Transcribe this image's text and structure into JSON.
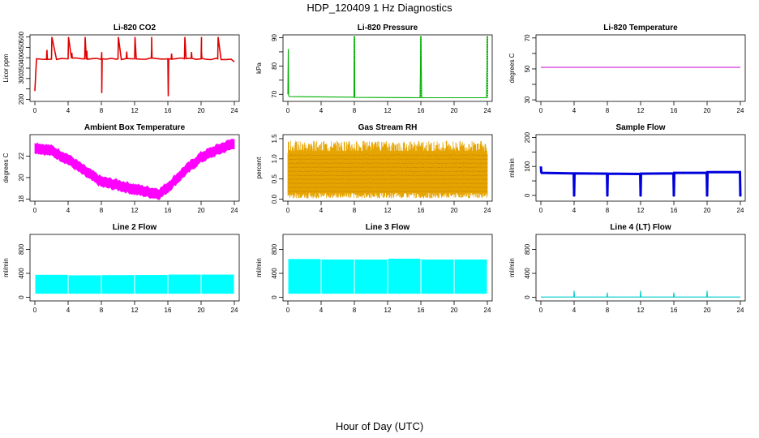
{
  "figure": {
    "title": "HDP_120409  1 Hz Diagnostics",
    "x_axis_title": "Hour of Day (UTC)"
  },
  "chart_data": [
    {
      "type": "line",
      "title": "Li-820 CO2",
      "ylabel": "Licor ppm",
      "color": "#e00000",
      "xlim": [
        0,
        24
      ],
      "xticks": [
        0,
        4,
        8,
        12,
        16,
        20,
        24
      ],
      "ylim": [
        190,
        510
      ],
      "yticks": [
        200,
        250,
        300,
        350,
        400,
        450,
        500
      ],
      "ytick_labels": [
        "200",
        "",
        "300",
        "350",
        "400",
        "450",
        "500"
      ],
      "series": [
        {
          "x": [
            0.0,
            0.2,
            2.0,
            2.05,
            4.0,
            4.05,
            6.0,
            6.05,
            8.0,
            8.05,
            8.1,
            10.0,
            10.05,
            12.0,
            12.05,
            14.0,
            14.05,
            16.0,
            16.05,
            16.1,
            18.0,
            18.05,
            20.0,
            20.05,
            22.0,
            22.05,
            24.0
          ],
          "y": [
            240,
            395,
            395,
            500,
            395,
            500,
            395,
            500,
            395,
            230,
            395,
            395,
            500,
            395,
            500,
            395,
            500,
            395,
            215,
            395,
            395,
            500,
            395,
            500,
            395,
            500,
            380
          ]
        }
      ]
    },
    {
      "type": "line",
      "title": "Li-820 Pressure",
      "ylabel": "kPa",
      "color": "#00b000",
      "xlim": [
        0,
        24
      ],
      "xticks": [
        0,
        4,
        8,
        12,
        16,
        20,
        24
      ],
      "ylim": [
        67.5,
        91
      ],
      "yticks": [
        70,
        75,
        80,
        85,
        90
      ],
      "ytick_labels": [
        "70",
        "",
        "80",
        "",
        "90"
      ],
      "series": [
        {
          "x": [
            0.0,
            0.05,
            0.1,
            0.2,
            7.95,
            8.0,
            8.05,
            15.9,
            16.0,
            16.1,
            23.9,
            24.0
          ],
          "y": [
            70,
            86,
            69.5,
            69.2,
            69.0,
            90,
            68.9,
            68.8,
            90,
            68.8,
            68.8,
            90
          ]
        }
      ]
    },
    {
      "type": "line",
      "title": "Li-820 Temperature",
      "ylabel": "degrees C",
      "color": "#cc00cc",
      "xlim": [
        0,
        24
      ],
      "xticks": [
        0,
        4,
        8,
        12,
        16,
        20,
        24
      ],
      "ylim": [
        29,
        72
      ],
      "yticks": [
        30,
        40,
        50,
        60,
        70
      ],
      "ytick_labels": [
        "30",
        "",
        "50",
        "",
        "70"
      ],
      "series": [
        {
          "x": [
            0,
            24
          ],
          "y": [
            51,
            51
          ]
        }
      ]
    },
    {
      "type": "area",
      "title": "Ambient Box Temperature",
      "ylabel": "degrees C",
      "color": "#ff00ff",
      "xlim": [
        0,
        24
      ],
      "xticks": [
        0,
        4,
        8,
        12,
        16,
        20,
        24
      ],
      "ylim": [
        17.8,
        24.0
      ],
      "yticks": [
        18,
        20,
        22
      ],
      "ytick_labels": [
        "18",
        "20",
        "22"
      ],
      "series": [
        {
          "x": [
            0,
            2,
            4,
            6,
            8,
            10,
            12,
            14,
            15,
            16,
            18,
            20,
            22,
            24
          ],
          "y": [
            22.8,
            22.5,
            21.7,
            20.6,
            19.6,
            19.3,
            18.9,
            18.6,
            18.5,
            19.1,
            20.6,
            21.9,
            22.6,
            23.2
          ],
          "band": 0.45
        }
      ]
    },
    {
      "type": "area",
      "title": "Gas Stream RH",
      "ylabel": "percent",
      "color": "#e6a400",
      "xlim": [
        0,
        24
      ],
      "xticks": [
        0,
        4,
        8,
        12,
        16,
        20,
        24
      ],
      "ylim": [
        -0.05,
        1.6
      ],
      "yticks": [
        0.0,
        0.5,
        1.0,
        1.5
      ],
      "ytick_labels": [
        "0.0",
        "0.5",
        "1.0",
        "1.5"
      ],
      "series": [
        {
          "x": [
            0,
            24
          ],
          "low": [
            0.15,
            0.15
          ],
          "high": [
            1.2,
            1.2
          ],
          "min": 0.02,
          "max": 1.45
        }
      ]
    },
    {
      "type": "line",
      "title": "Sample Flow",
      "ylabel": "ml/min",
      "color": "#0000dd",
      "xlim": [
        0,
        24
      ],
      "xticks": [
        0,
        4,
        8,
        12,
        16,
        20,
        24
      ],
      "ylim": [
        -20,
        210
      ],
      "yticks": [
        0,
        50,
        100,
        150,
        200
      ],
      "ytick_labels": [
        "0",
        "",
        "100",
        "",
        "200"
      ],
      "series": [
        {
          "x": [
            0.0,
            0.05,
            0.1,
            3.95,
            4.0,
            4.05,
            7.95,
            8.0,
            8.05,
            11.95,
            12.0,
            12.05,
            15.95,
            16.0,
            16.05,
            19.95,
            20.0,
            20.05,
            23.95,
            24.0
          ],
          "y": [
            100,
            80,
            78,
            76,
            0,
            76,
            75,
            0,
            75,
            74,
            0,
            75,
            76,
            0,
            78,
            78,
            0,
            80,
            80,
            0
          ]
        }
      ]
    },
    {
      "type": "area",
      "title": "Line 2 Flow",
      "ylabel": "ml/min",
      "color": "#00ffff",
      "xlim": [
        0,
        24
      ],
      "xticks": [
        0,
        4,
        8,
        12,
        16,
        20,
        24
      ],
      "ylim": [
        -60,
        1050
      ],
      "yticks": [
        0,
        400,
        800
      ],
      "ytick_labels": [
        "0",
        "400",
        "800"
      ],
      "series": [
        {
          "x": [
            0,
            24
          ],
          "low": [
            60,
            60
          ],
          "high": [
            370,
            370
          ]
        }
      ]
    },
    {
      "type": "area",
      "title": "Line 3 Flow",
      "ylabel": "ml/min",
      "color": "#00ffff",
      "xlim": [
        0,
        24
      ],
      "xticks": [
        0,
        4,
        8,
        12,
        16,
        20,
        24
      ],
      "ylim": [
        -60,
        1050
      ],
      "yticks": [
        0,
        400,
        800
      ],
      "ytick_labels": [
        "0",
        "400",
        "800"
      ],
      "series": [
        {
          "x": [
            0,
            24
          ],
          "low": [
            60,
            60
          ],
          "high": [
            640,
            640
          ]
        }
      ]
    },
    {
      "type": "line",
      "title": "Line 4 (LT) Flow",
      "ylabel": "ml/min",
      "color": "#00cccc",
      "xlim": [
        0,
        24
      ],
      "xticks": [
        0,
        4,
        8,
        12,
        16,
        20,
        24
      ],
      "ylim": [
        -60,
        1050
      ],
      "yticks": [
        0,
        400,
        800
      ],
      "ytick_labels": [
        "0",
        "400",
        "800"
      ],
      "series": [
        {
          "x": [
            0,
            3.95,
            4.0,
            4.05,
            7.95,
            8.0,
            8.05,
            11.95,
            12.0,
            12.05,
            15.95,
            16.0,
            16.05,
            19.95,
            20.0,
            20.05,
            24
          ],
          "y": [
            5,
            5,
            110,
            5,
            5,
            80,
            5,
            5,
            110,
            5,
            5,
            80,
            5,
            5,
            110,
            5,
            5
          ]
        }
      ]
    }
  ]
}
